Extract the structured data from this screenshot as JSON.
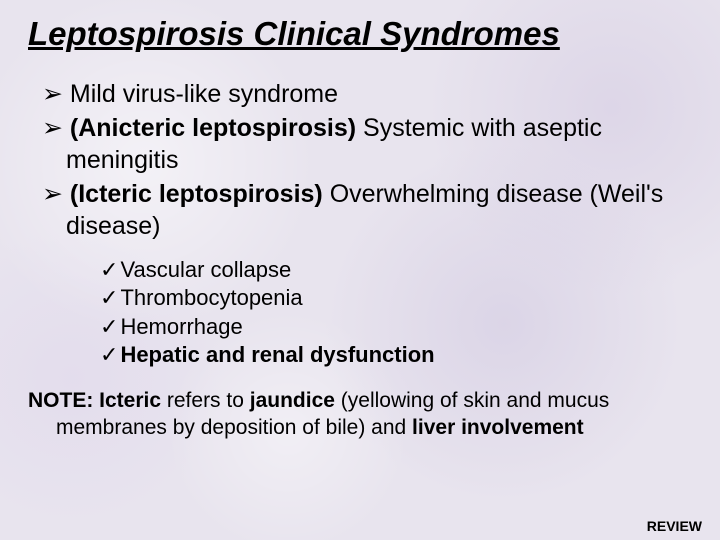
{
  "title": "Leptospirosis Clinical Syndromes",
  "main_bullets": {
    "b1": "Mild virus-like syndrome",
    "b2_prefix": "(Anicteric leptospirosis)",
    "b2_rest": " Systemic with aseptic meningitis",
    "b3_prefix": "(Icteric leptospirosis)",
    "b3_rest": " Overwhelming disease (Weil's disease)"
  },
  "sub_bullets": {
    "s1": "Vascular collapse",
    "s2": "Thrombocytopenia",
    "s3": "Hemorrhage",
    "s4": "Hepatic and renal dysfunction"
  },
  "note": {
    "label": "NOTE: Icteric",
    "mid1": " refers to ",
    "b1": "jaundice",
    "mid2": " (yellowing of skin and mucus membranes by deposition of bile) and ",
    "b2": "liver involvement"
  },
  "review": "REVIEW"
}
